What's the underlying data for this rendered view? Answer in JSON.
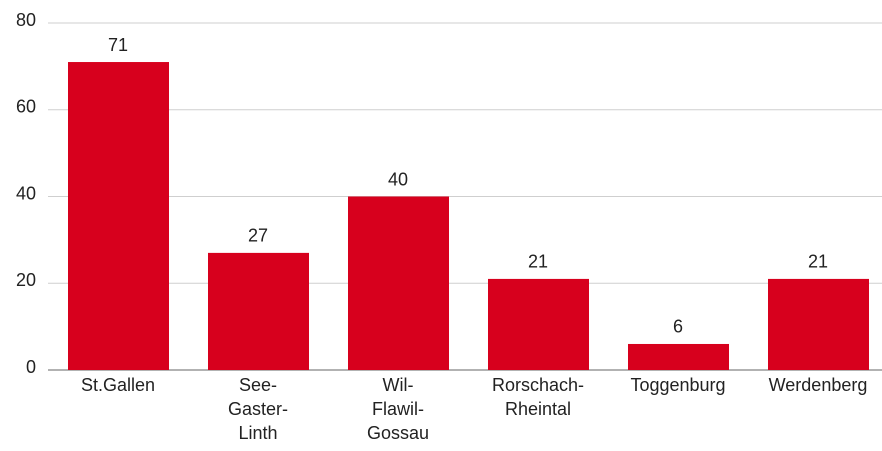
{
  "chart_data": {
    "type": "bar",
    "categories": [
      "St.Gallen",
      "See-\nGaster-\nLinth",
      "Wil-\nFlawil-\nGossau",
      "Rorschach-\nRheintal",
      "Toggenburg",
      "Werdenberg"
    ],
    "values": [
      71,
      27,
      40,
      21,
      6,
      21
    ],
    "color": "#d7001d",
    "ylim": [
      0,
      80
    ],
    "yticks": [
      0,
      20,
      40,
      60,
      80
    ],
    "grid": true
  }
}
